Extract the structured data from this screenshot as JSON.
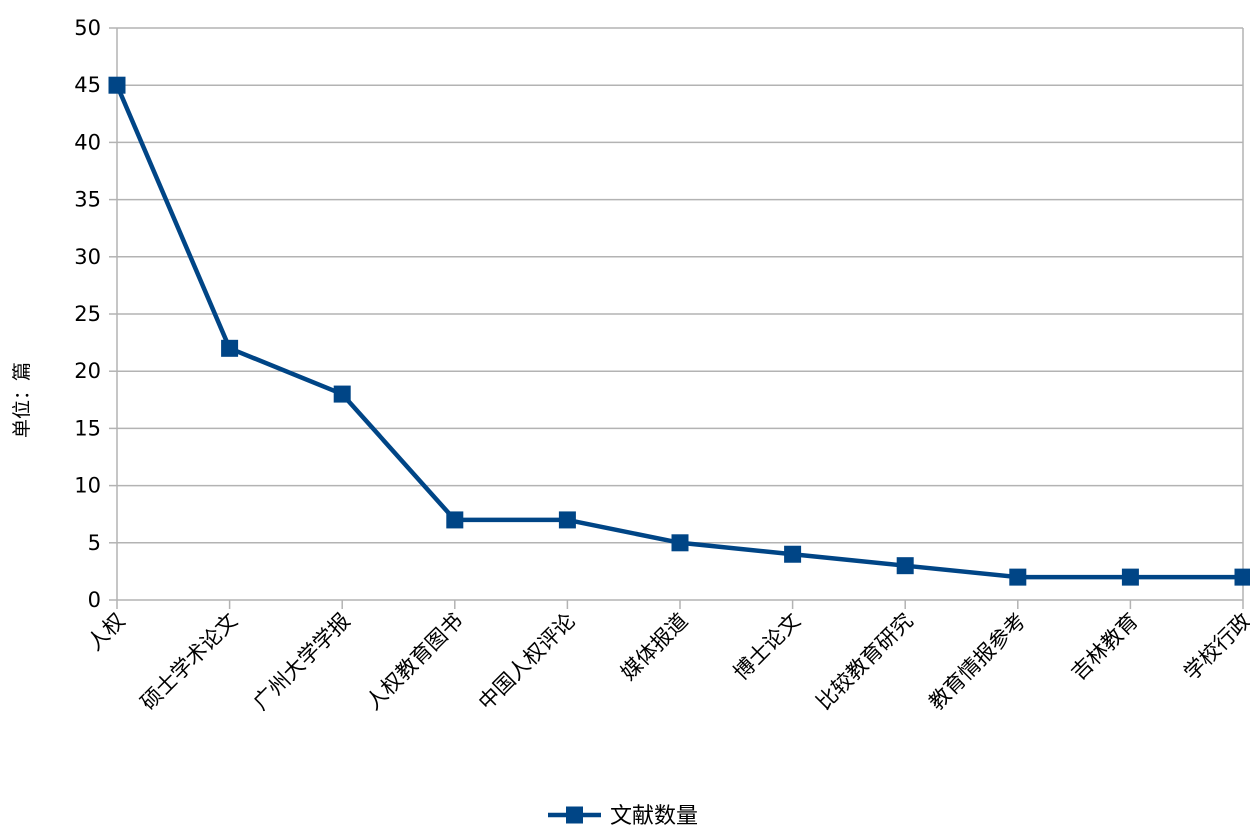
{
  "chart_data": {
    "type": "line",
    "title": "",
    "xlabel": "",
    "ylabel": "单位：篇",
    "categories": [
      "人权",
      "硕士学术论文",
      "广州大学学报",
      "人权教育图书",
      "中国人权评论",
      "媒体报道",
      "博士论文",
      "比较教育研究",
      "教育情报参考",
      "吉林教育",
      "学校行政"
    ],
    "series": [
      {
        "name": "文献数量",
        "values": [
          45,
          22,
          18,
          7,
          7,
          5,
          4,
          3,
          2,
          2,
          2
        ],
        "color": "#004586",
        "marker": "square"
      }
    ],
    "ylim": [
      0,
      50
    ],
    "yticks": [
      0,
      5,
      10,
      15,
      20,
      25,
      30,
      35,
      40,
      45,
      50
    ],
    "grid": true,
    "legend": "bottom"
  }
}
